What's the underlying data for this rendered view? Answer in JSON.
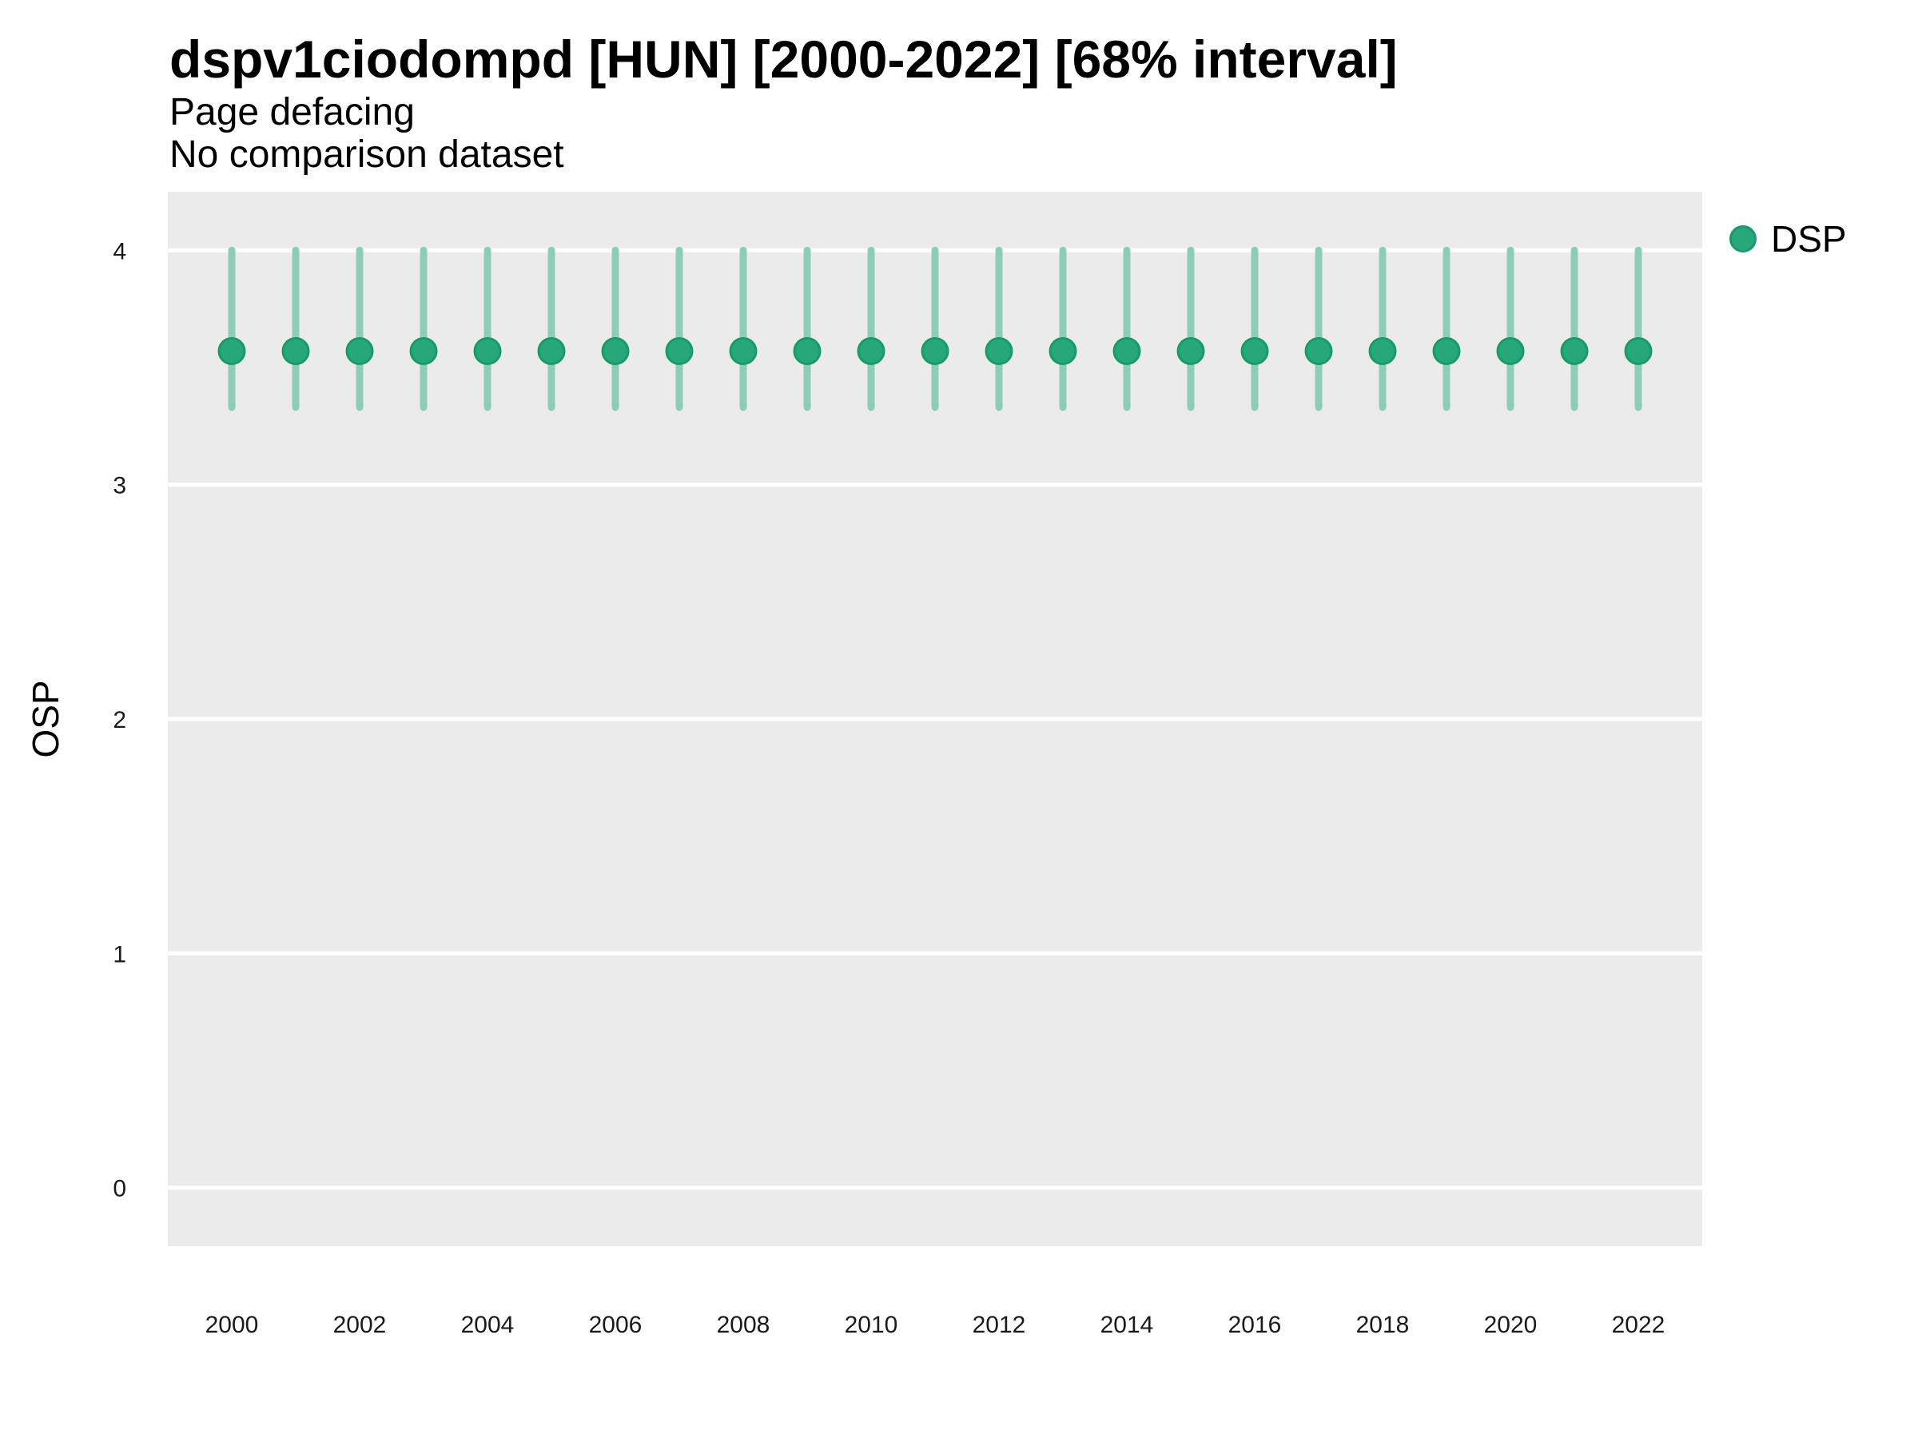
{
  "header": {
    "title": "dspv1ciodompd [HUN] [2000-2022] [68% interval]",
    "subtitle": "Page defacing",
    "note": "No comparison dataset"
  },
  "legend": {
    "label": "DSP",
    "position": "right-top"
  },
  "colors": {
    "point_fill": "#26A87B",
    "point_stroke": "#189A6C",
    "interval": "#8CCDB8",
    "panel_bg": "#EBEBEB",
    "gridline": "#FFFFFF",
    "tick_text": "#1A1A1A",
    "text": "#000000"
  },
  "chart_data": {
    "type": "scatter",
    "variant": "pointrange",
    "title": "dspv1ciodompd [HUN] [2000-2022] [68% interval]",
    "subtitle": "Page defacing",
    "note": "No comparison dataset",
    "xlabel": "",
    "ylabel": "OSP",
    "ylim": [
      -0.25,
      4.25
    ],
    "yticks": [
      0,
      1,
      2,
      3,
      4
    ],
    "xticks": [
      2000,
      2002,
      2004,
      2006,
      2008,
      2010,
      2012,
      2014,
      2016,
      2018,
      2020,
      2022
    ],
    "grid": "major-y-only",
    "legend_entries": [
      "DSP"
    ],
    "interval_label": "68% interval",
    "series": [
      {
        "name": "DSP",
        "points": [
          {
            "year": 2000,
            "value": 3.57,
            "lo": 3.33,
            "hi": 4.0
          },
          {
            "year": 2001,
            "value": 3.57,
            "lo": 3.33,
            "hi": 4.0
          },
          {
            "year": 2002,
            "value": 3.57,
            "lo": 3.33,
            "hi": 4.0
          },
          {
            "year": 2003,
            "value": 3.57,
            "lo": 3.33,
            "hi": 4.0
          },
          {
            "year": 2004,
            "value": 3.57,
            "lo": 3.33,
            "hi": 4.0
          },
          {
            "year": 2005,
            "value": 3.57,
            "lo": 3.33,
            "hi": 4.0
          },
          {
            "year": 2006,
            "value": 3.57,
            "lo": 3.33,
            "hi": 4.0
          },
          {
            "year": 2007,
            "value": 3.57,
            "lo": 3.33,
            "hi": 4.0
          },
          {
            "year": 2008,
            "value": 3.57,
            "lo": 3.33,
            "hi": 4.0
          },
          {
            "year": 2009,
            "value": 3.57,
            "lo": 3.33,
            "hi": 4.0
          },
          {
            "year": 2010,
            "value": 3.57,
            "lo": 3.33,
            "hi": 4.0
          },
          {
            "year": 2011,
            "value": 3.57,
            "lo": 3.33,
            "hi": 4.0
          },
          {
            "year": 2012,
            "value": 3.57,
            "lo": 3.33,
            "hi": 4.0
          },
          {
            "year": 2013,
            "value": 3.57,
            "lo": 3.33,
            "hi": 4.0
          },
          {
            "year": 2014,
            "value": 3.57,
            "lo": 3.33,
            "hi": 4.0
          },
          {
            "year": 2015,
            "value": 3.57,
            "lo": 3.33,
            "hi": 4.0
          },
          {
            "year": 2016,
            "value": 3.57,
            "lo": 3.33,
            "hi": 4.0
          },
          {
            "year": 2017,
            "value": 3.57,
            "lo": 3.33,
            "hi": 4.0
          },
          {
            "year": 2018,
            "value": 3.57,
            "lo": 3.33,
            "hi": 4.0
          },
          {
            "year": 2019,
            "value": 3.57,
            "lo": 3.33,
            "hi": 4.0
          },
          {
            "year": 2020,
            "value": 3.57,
            "lo": 3.33,
            "hi": 4.0
          },
          {
            "year": 2021,
            "value": 3.57,
            "lo": 3.33,
            "hi": 4.0
          },
          {
            "year": 2022,
            "value": 3.57,
            "lo": 3.33,
            "hi": 4.0
          }
        ]
      }
    ]
  }
}
